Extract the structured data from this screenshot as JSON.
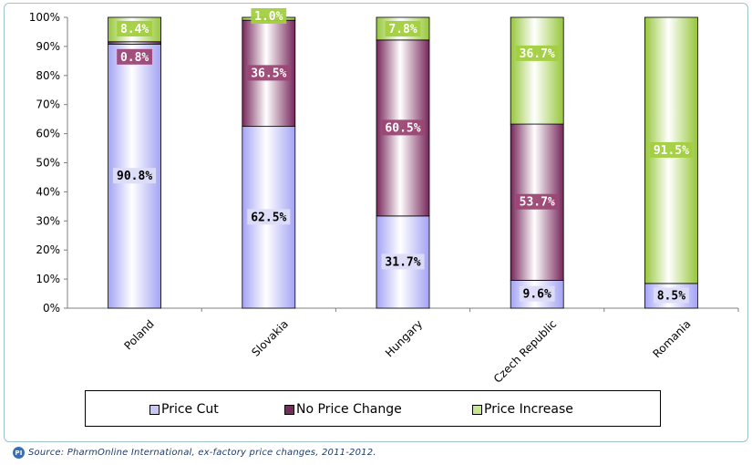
{
  "chart_data": {
    "type": "bar",
    "stacked": true,
    "categories": [
      "Poland",
      "Slovakia",
      "Hungary",
      "Czech Republic",
      "Romania"
    ],
    "series": [
      {
        "name": "Price Cut",
        "values": [
          90.8,
          62.5,
          31.7,
          9.6,
          8.5
        ],
        "labels": [
          "90.8%",
          "62.5%",
          "31.7%",
          "9.6%",
          "8.5%"
        ],
        "color": "#a9a9f7",
        "label_bg": "#dcdcf8"
      },
      {
        "name": "No Price Change",
        "values": [
          0.8,
          36.5,
          60.5,
          53.7,
          0.0
        ],
        "labels": [
          "0.8%",
          "36.5%",
          "60.5%",
          "53.7%",
          ""
        ],
        "color": "#7a2a5c",
        "label_bg": "#9c4674"
      },
      {
        "name": "Price Increase",
        "values": [
          8.4,
          1.0,
          7.8,
          36.7,
          91.5
        ],
        "labels": [
          "8.4%",
          "1.0%",
          "7.8%",
          "36.7%",
          "91.5%"
        ],
        "color": "#99c83a",
        "label_bg": "#a2cf3e"
      }
    ],
    "y_ticks": [
      "0%",
      "10%",
      "20%",
      "30%",
      "40%",
      "50%",
      "60%",
      "70%",
      "80%",
      "90%",
      "100%"
    ],
    "ylim": [
      0,
      100
    ],
    "grid": false,
    "legend_position": "bottom"
  },
  "legend": {
    "items": [
      {
        "label": "Price Cut",
        "color": "#c8c8f8"
      },
      {
        "label": "No Price Change",
        "color": "#7a2a5c"
      },
      {
        "label": "Price Increase",
        "color": "#c8e68c"
      }
    ]
  },
  "source": {
    "text": "Source: PharmOnline International, ex-factory price changes, 2011-2012.",
    "logo_text": "PI"
  }
}
